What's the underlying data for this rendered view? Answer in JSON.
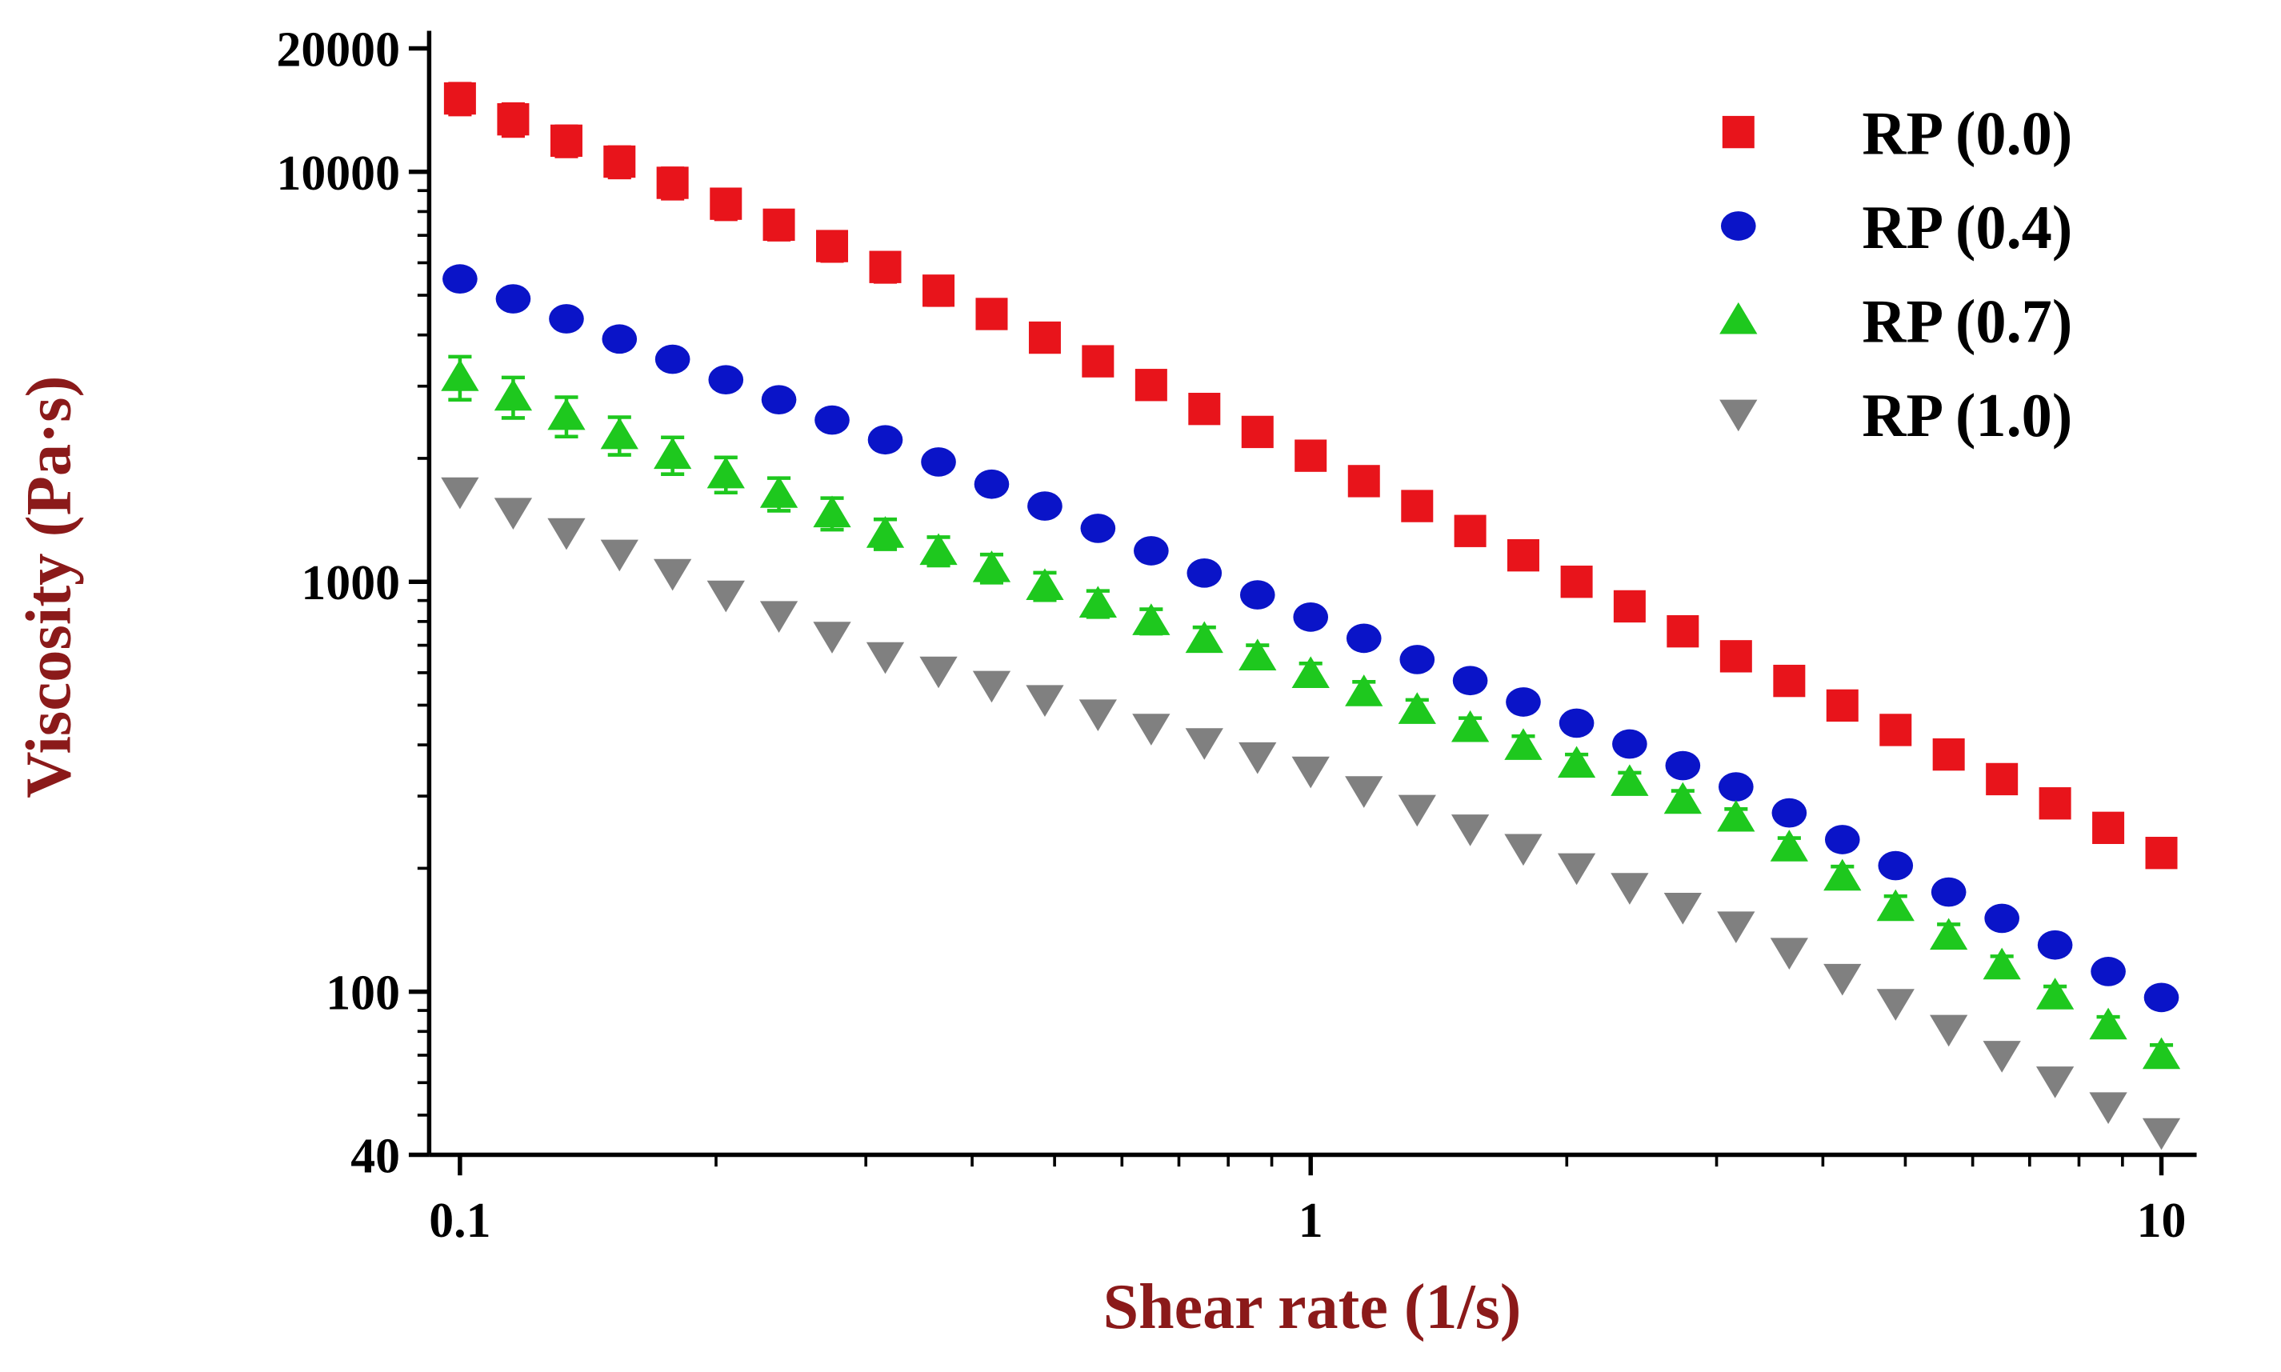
{
  "chart_data": {
    "type": "scatter",
    "xlabel": "Shear rate (1/s)",
    "ylabel": "Viscosity (Pa·s)",
    "xscale": "log",
    "yscale": "log",
    "xlim": [
      0.092,
      11
    ],
    "ylim": [
      40,
      20000
    ],
    "xticks": [
      0.1,
      1,
      10
    ],
    "xticks_minor": [
      0.2,
      0.3,
      0.4,
      0.5,
      0.6,
      0.7,
      0.8,
      0.9,
      2,
      3,
      4,
      5,
      6,
      7,
      8,
      9
    ],
    "yticks": [
      40,
      100,
      1000,
      10000,
      20000
    ],
    "yticks_minor": [
      50,
      60,
      70,
      80,
      90,
      200,
      300,
      400,
      500,
      600,
      700,
      800,
      900,
      2000,
      3000,
      4000,
      5000,
      6000,
      7000,
      8000,
      9000
    ],
    "legend": "upper right",
    "x": [
      0.1,
      0.1155,
      0.1334,
      0.154,
      0.1778,
      0.2054,
      0.2371,
      0.2738,
      0.3162,
      0.3652,
      0.4217,
      0.487,
      0.5623,
      0.6494,
      0.7499,
      0.866,
      1,
      1.155,
      1.334,
      1.54,
      1.778,
      2.054,
      2.371,
      2.738,
      3.162,
      3.652,
      4.217,
      4.87,
      5.623,
      6.494,
      7.499,
      8.66,
      10
    ],
    "series": [
      {
        "name": "RP (0.0)",
        "color": "#e8141b",
        "marker": "square",
        "values": [
          15100,
          13430,
          11910,
          10590,
          9400,
          8360,
          7430,
          6590,
          5860,
          5130,
          4500,
          3940,
          3450,
          3020,
          2640,
          2320,
          2030,
          1760,
          1530,
          1330,
          1160,
          1000,
          871,
          757,
          658,
          573,
          499,
          435,
          379,
          330,
          288,
          251,
          218
        ],
        "errors": [
          1300,
          1200,
          1000,
          900,
          800,
          700,
          600,
          530,
          470,
          400,
          340,
          290,
          240,
          200,
          170,
          140,
          120,
          100,
          85,
          72,
          62,
          55,
          50,
          45,
          40,
          35,
          31,
          28,
          25,
          22,
          19,
          17,
          15
        ]
      },
      {
        "name": "RP (0.4)",
        "color": "#0a14c8",
        "marker": "circle",
        "values": [
          5480,
          4900,
          4380,
          3910,
          3490,
          3110,
          2780,
          2480,
          2220,
          1960,
          1730,
          1530,
          1350,
          1190,
          1050,
          929,
          820,
          728,
          646,
          574,
          509,
          452,
          402,
          356,
          316,
          273,
          235,
          203,
          175,
          151,
          130,
          112,
          96.8
        ]
      },
      {
        "name": "RP (0.7)",
        "color": "#1ec81e",
        "marker": "triangle-up",
        "values": [
          3160,
          2830,
          2540,
          2280,
          2040,
          1830,
          1640,
          1470,
          1310,
          1190,
          1080,
          977,
          885,
          802,
          726,
          658,
          596,
          538,
          487,
          440,
          398,
          360,
          325,
          294,
          266,
          225,
          191,
          161,
          137,
          116,
          98,
          82.8,
          70.1
        ],
        "errors": [
          380,
          320,
          280,
          240,
          210,
          180,
          150,
          130,
          110,
          95,
          85,
          75,
          65,
          55,
          48,
          42,
          36,
          32,
          28,
          25,
          22,
          19,
          17,
          15,
          13,
          12,
          11,
          10,
          9,
          6,
          5,
          4,
          4
        ]
      },
      {
        "name": "RP (1.0)",
        "color": "#808080",
        "marker": "triangle-down",
        "values": [
          1660,
          1480,
          1320,
          1170,
          1050,
          930,
          829,
          738,
          658,
          607,
          560,
          517,
          477,
          440,
          406,
          375,
          346,
          310,
          279,
          250,
          224,
          201,
          180,
          161,
          145,
          125,
          108,
          93.8,
          81.1,
          70.1,
          60.7,
          52.5,
          45.4
        ]
      }
    ]
  }
}
